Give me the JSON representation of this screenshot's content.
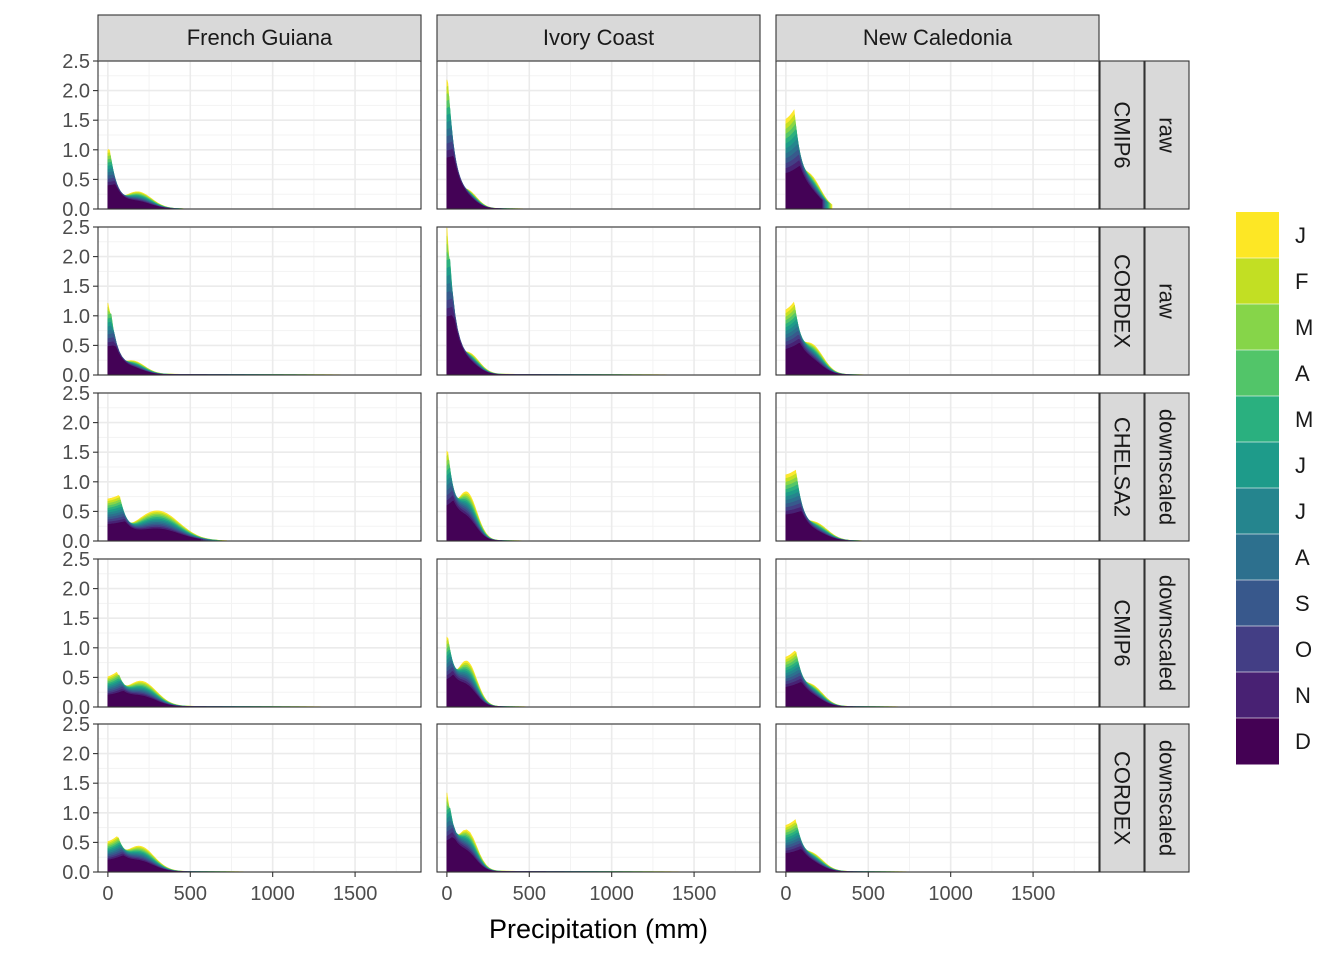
{
  "chart_data": {
    "type": "area",
    "layout": "faceted ridge-density small multiples",
    "xlabel": "Precipitation (mm)",
    "ylabel": "",
    "xlim": [
      -60,
      1900
    ],
    "ylim": [
      0,
      2.5
    ],
    "x_ticks": [
      0,
      500,
      1000,
      1500
    ],
    "x_tick_labels": [
      "0",
      "500",
      "1000",
      "1500"
    ],
    "y_ticks": [
      0.0,
      0.5,
      1.0,
      1.5,
      2.0,
      2.5
    ],
    "y_tick_labels": [
      "0.0",
      "0.5",
      "1.0",
      "1.5",
      "2.0",
      "2.5"
    ],
    "grid": true,
    "columns": [
      "French Guiana",
      "Ivory Coast",
      "New Caledonia"
    ],
    "rows": [
      {
        "type": "raw",
        "source": "CMIP6"
      },
      {
        "type": "raw",
        "source": "CORDEX"
      },
      {
        "type": "downscaled",
        "source": "CHELSA2"
      },
      {
        "type": "downscaled",
        "source": "CMIP6"
      },
      {
        "type": "downscaled",
        "source": "CORDEX"
      }
    ],
    "legend": {
      "placement": "right",
      "labels": [
        "J",
        "F",
        "M",
        "A",
        "M",
        "J",
        "J",
        "A",
        "S",
        "O",
        "N",
        "D"
      ],
      "colors": [
        "#FDE725",
        "#C2DF23",
        "#86D549",
        "#52C569",
        "#2AB07F",
        "#1E9B8A",
        "#25858E",
        "#2D708E",
        "#38588C",
        "#433E85",
        "#482173",
        "#440154"
      ]
    },
    "panel_style": {
      "background": "#FFFFFF",
      "grid_color": "#EBEBEB",
      "strip_fill": "#D9D9D9",
      "border_color": "#333333"
    },
    "series": [
      {
        "row": 0,
        "column": 0,
        "peak": 0.95,
        "peak_x": 10,
        "max_x": 490,
        "secondary_x": 180,
        "secondary_y": 0.28
      },
      {
        "row": 0,
        "column": 1,
        "peak": 2.12,
        "peak_x": 5,
        "max_x": 580,
        "secondary_x": 120,
        "secondary_y": 0.3
      },
      {
        "row": 0,
        "column": 2,
        "peak": 1.42,
        "peak_x": 50,
        "max_x": 280,
        "secondary_x": 140,
        "secondary_y": 0.55
      },
      {
        "row": 1,
        "column": 0,
        "peak": 1.17,
        "peak_x": 10,
        "max_x": 1800,
        "secondary_x": 150,
        "secondary_y": 0.22
      },
      {
        "row": 1,
        "column": 1,
        "peak": 2.42,
        "peak_x": 5,
        "max_x": 1700,
        "secondary_x": 130,
        "secondary_y": 0.35
      },
      {
        "row": 1,
        "column": 2,
        "peak": 1.02,
        "peak_x": 50,
        "max_x": 540,
        "secondary_x": 150,
        "secondary_y": 0.5
      },
      {
        "row": 2,
        "column": 0,
        "peak": 0.65,
        "peak_x": 70,
        "max_x": 720,
        "secondary_x": 300,
        "secondary_y": 0.5
      },
      {
        "row": 2,
        "column": 1,
        "peak": 1.38,
        "peak_x": 5,
        "max_x": 570,
        "secondary_x": 120,
        "secondary_y": 0.8
      },
      {
        "row": 2,
        "column": 2,
        "peak": 1.06,
        "peak_x": 60,
        "max_x": 480,
        "secondary_x": 170,
        "secondary_y": 0.3
      },
      {
        "row": 3,
        "column": 0,
        "peak": 0.45,
        "peak_x": 60,
        "max_x": 1580,
        "secondary_x": 200,
        "secondary_y": 0.42
      },
      {
        "row": 3,
        "column": 1,
        "peak": 1.05,
        "peak_x": 5,
        "max_x": 610,
        "secondary_x": 120,
        "secondary_y": 0.75
      },
      {
        "row": 3,
        "column": 2,
        "peak": 0.78,
        "peak_x": 60,
        "max_x": 800,
        "secondary_x": 150,
        "secondary_y": 0.35
      },
      {
        "row": 4,
        "column": 0,
        "peak": 0.45,
        "peak_x": 60,
        "max_x": 980,
        "secondary_x": 190,
        "secondary_y": 0.42
      },
      {
        "row": 4,
        "column": 1,
        "peak": 1.22,
        "peak_x": 5,
        "max_x": 1800,
        "secondary_x": 120,
        "secondary_y": 0.68
      },
      {
        "row": 4,
        "column": 2,
        "peak": 0.73,
        "peak_x": 60,
        "max_x": 860,
        "secondary_x": 150,
        "secondary_y": 0.3
      }
    ]
  }
}
